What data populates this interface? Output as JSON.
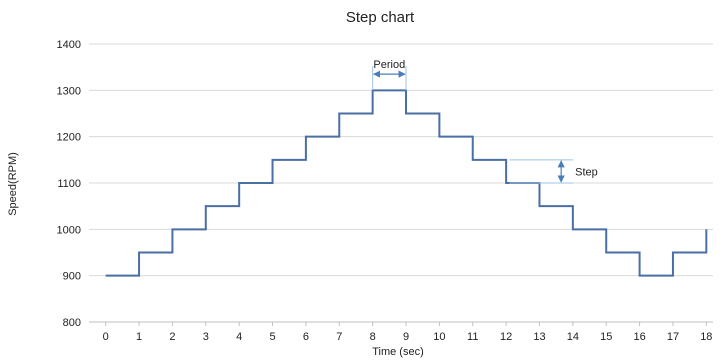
{
  "chart_data": {
    "type": "line",
    "style": "step",
    "title": "Step chart",
    "xlabel": "Time (sec)",
    "ylabel": "Speed(RPM)",
    "xlim": [
      -0.5,
      18.2
    ],
    "ylim": [
      800,
      1400
    ],
    "x_ticks": [
      0,
      1,
      2,
      3,
      4,
      5,
      6,
      7,
      8,
      9,
      10,
      11,
      12,
      13,
      14,
      15,
      16,
      17,
      18
    ],
    "y_ticks": [
      800,
      900,
      1000,
      1100,
      1200,
      1300,
      1400
    ],
    "grid": "horizontal",
    "legend": "none",
    "series": [
      {
        "x": [
          0,
          1,
          2,
          3,
          4,
          5,
          6,
          7,
          8,
          9,
          10,
          11,
          12,
          13,
          14,
          15,
          16,
          17,
          18
        ],
        "values": [
          900,
          950,
          1000,
          1050,
          1100,
          1150,
          1200,
          1250,
          1300,
          1250,
          1200,
          1150,
          1100,
          1050,
          1000,
          950,
          900,
          950,
          1000
        ]
      }
    ],
    "annotations": [
      {
        "label": "Period",
        "type": "horizontal-span",
        "x": [
          8,
          9
        ],
        "y": 1335
      },
      {
        "label": "Step",
        "type": "vertical-span",
        "x": 13.65,
        "y": [
          1100,
          1150
        ]
      }
    ],
    "colors": {
      "line": "#4a6fa5",
      "grid": "#d9d9d9",
      "annotation": "#4a7ebb",
      "guide": "#9dc3e6"
    }
  }
}
